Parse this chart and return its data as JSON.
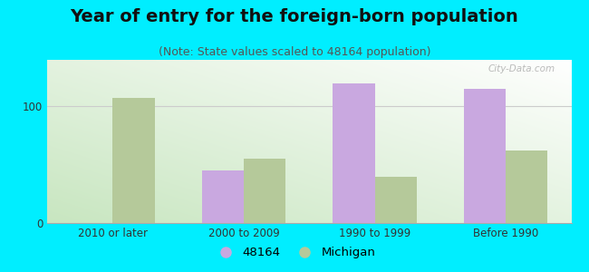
{
  "title": "Year of entry for the foreign-born population",
  "subtitle": "(Note: State values scaled to 48164 population)",
  "categories": [
    "2010 or later",
    "2000 to 2009",
    "1990 to 1999",
    "Before 1990"
  ],
  "series_48164": [
    0,
    45,
    120,
    115
  ],
  "series_michigan": [
    107,
    55,
    40,
    62
  ],
  "color_48164": "#c9a8e0",
  "color_michigan": "#b5c99a",
  "background_outer": "#00eeff",
  "ylim": [
    0,
    140
  ],
  "yticks": [
    0,
    100
  ],
  "bar_width": 0.32,
  "legend_label_48164": "48164",
  "legend_label_michigan": "Michigan",
  "title_fontsize": 14,
  "subtitle_fontsize": 9,
  "tick_fontsize": 8.5,
  "legend_fontsize": 9.5
}
